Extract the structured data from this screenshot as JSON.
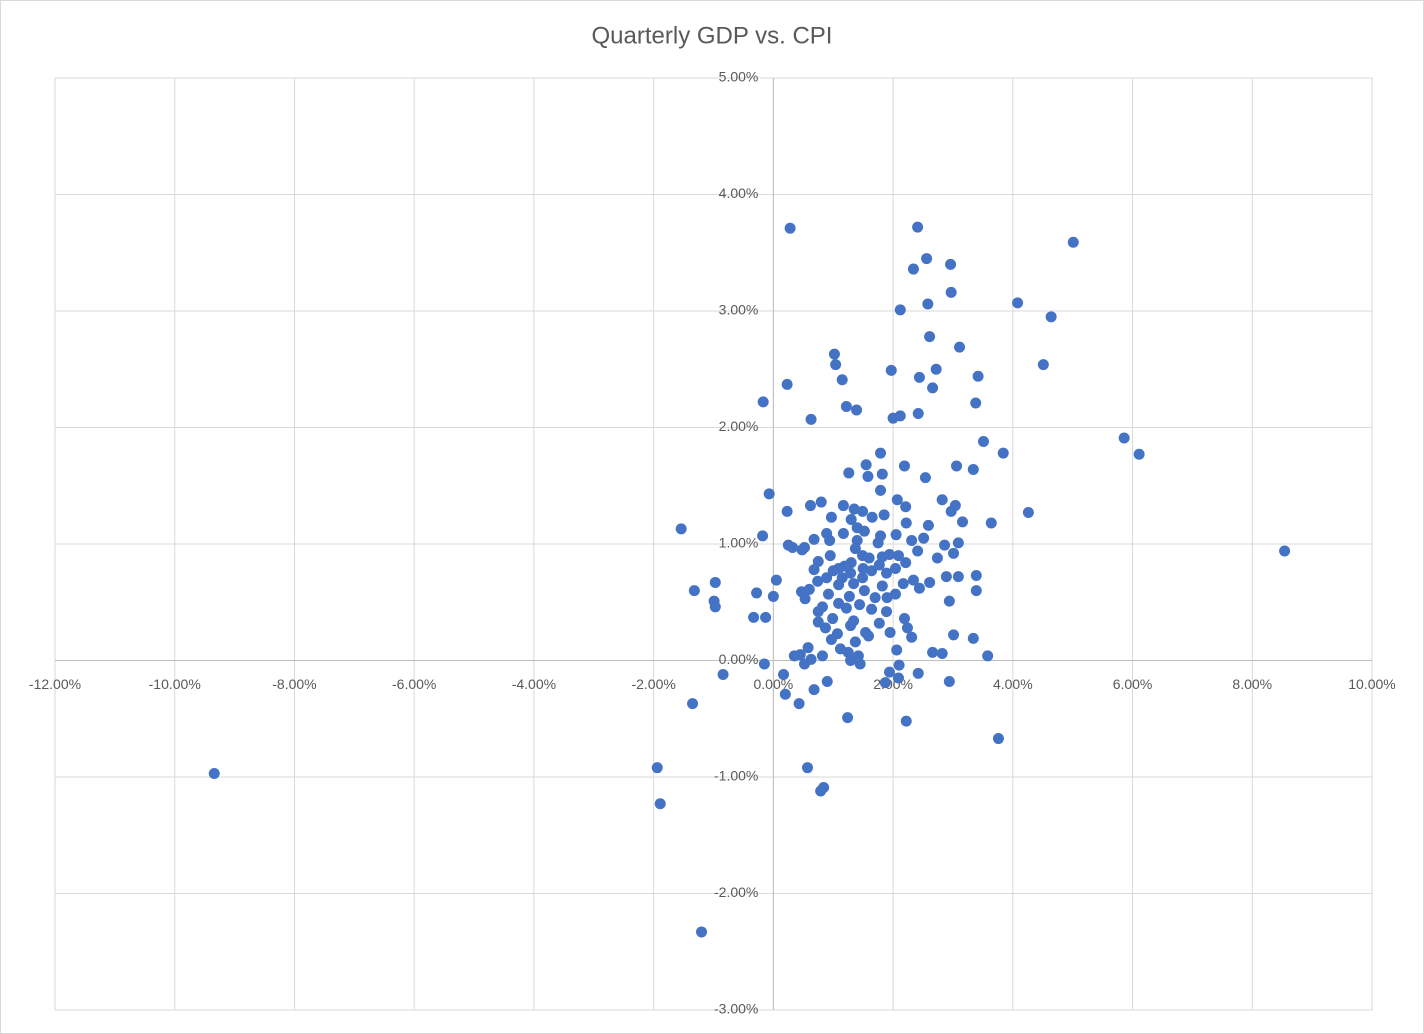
{
  "chart_data": {
    "type": "scatter",
    "title": "Quarterly GDP vs. CPI",
    "color": "#4472c4",
    "grid": true,
    "xlim": [
      -12,
      10
    ],
    "ylim": [
      -3,
      5
    ],
    "xticks": [
      {
        "value": -12,
        "label": "-12.00%"
      },
      {
        "value": -10,
        "label": "-10.00%"
      },
      {
        "value": -8,
        "label": "-8.00%"
      },
      {
        "value": -6,
        "label": "-6.00%"
      },
      {
        "value": -4,
        "label": "-4.00%"
      },
      {
        "value": -2,
        "label": "-2.00%"
      },
      {
        "value": 0,
        "label": "0.00%"
      },
      {
        "value": 2,
        "label": "2.00%"
      },
      {
        "value": 4,
        "label": "4.00%"
      },
      {
        "value": 6,
        "label": "6.00%"
      },
      {
        "value": 8,
        "label": "8.00%"
      },
      {
        "value": 10,
        "label": "10.00%"
      }
    ],
    "yticks": [
      {
        "value": -3,
        "label": "-3.00%"
      },
      {
        "value": -2,
        "label": "-2.00%"
      },
      {
        "value": -1,
        "label": "-1.00%"
      },
      {
        "value": 0,
        "label": "0.00%"
      },
      {
        "value": 1,
        "label": "1.00%"
      },
      {
        "value": 2,
        "label": "2.00%"
      },
      {
        "value": 3,
        "label": "3.00%"
      },
      {
        "value": 4,
        "label": "4.00%"
      },
      {
        "value": 5,
        "label": "5.00%"
      }
    ],
    "x": [
      -9.34,
      8.54,
      6.11,
      5.86,
      5.01,
      4.64,
      4.51,
      4.08,
      4.26,
      0.28,
      2.41,
      2.56,
      2.96,
      2.34,
      2.97,
      2.58,
      2.12,
      2.61,
      3.11,
      1.02,
      1.04,
      1.97,
      2.72,
      2.44,
      3.42,
      1.15,
      0.23,
      2.66,
      3.38,
      -0.17,
      1.22,
      1.39,
      2.42,
      2.12,
      2.0,
      0.63,
      3.51,
      3.84,
      1.79,
      2.19,
      3.06,
      3.34,
      1.55,
      1.26,
      1.82,
      1.58,
      2.54,
      1.79,
      -0.07,
      2.82,
      2.07,
      0.8,
      0.62,
      1.17,
      3.04,
      2.21,
      1.35,
      1.49,
      0.23,
      2.97,
      0.97,
      1.65,
      1.85,
      1.3,
      2.22,
      3.16,
      3.64,
      2.59,
      -1.54,
      1.4,
      1.52,
      0.89,
      1.17,
      1.79,
      -0.18,
      0.68,
      2.05,
      2.51,
      2.31,
      3.09,
      0.94,
      1.4,
      2.86,
      1.75,
      0.25,
      0.32,
      0.52,
      1.37,
      0.48,
      2.41,
      3.01,
      0.95,
      1.49,
      1.94,
      2.09,
      2.74,
      1.82,
      1.6,
      0.75,
      1.3,
      2.21,
      1.19,
      1.77,
      1.09,
      1.5,
      0.68,
      2.04,
      1.0,
      1.64,
      1.89,
      1.29,
      3.39,
      3.09,
      2.89,
      -0.97,
      0.05,
      0.89,
      1.15,
      1.49,
      0.74,
      2.34,
      2.61,
      2.17,
      1.34,
      1.09,
      1.82,
      0.6,
      2.44,
      1.52,
      3.39,
      -1.32,
      -0.28,
      0.47,
      0.0,
      0.92,
      1.27,
      2.04,
      1.9,
      0.53,
      1.7,
      -0.99,
      2.94,
      -0.97,
      0.82,
      1.44,
      1.22,
      1.64,
      1.89,
      1.09,
      0.75,
      -0.33,
      -0.13,
      2.19,
      0.99,
      1.34,
      0.75,
      1.77,
      2.24,
      0.87,
      1.29,
      1.54,
      1.95,
      1.07,
      1.59,
      2.31,
      3.34,
      3.01,
      1.37,
      0.97,
      0.58,
      1.12,
      2.06,
      1.25,
      2.66,
      2.82,
      0.35,
      0.45,
      0.82,
      3.58,
      1.42,
      0.63,
      1.29,
      0.52,
      1.45,
      2.1,
      -0.15,
      1.94,
      2.42,
      -0.84,
      0.17,
      2.09,
      2.94,
      0.9,
      1.87,
      0.68,
      0.2,
      -1.35,
      0.43,
      1.24,
      2.22,
      3.76,
      -1.94,
      0.57,
      0.84,
      0.79,
      -1.89,
      -1.2
    ],
    "values": [
      -0.97,
      0.94,
      1.77,
      1.91,
      3.59,
      2.95,
      2.54,
      3.07,
      1.27,
      3.71,
      3.72,
      3.45,
      3.4,
      3.36,
      3.16,
      3.06,
      3.01,
      2.78,
      2.69,
      2.63,
      2.54,
      2.49,
      2.5,
      2.43,
      2.44,
      2.41,
      2.37,
      2.34,
      2.21,
      2.22,
      2.18,
      2.15,
      2.12,
      2.1,
      2.08,
      2.07,
      1.88,
      1.78,
      1.78,
      1.67,
      1.67,
      1.64,
      1.68,
      1.61,
      1.6,
      1.58,
      1.57,
      1.46,
      1.43,
      1.38,
      1.38,
      1.36,
      1.33,
      1.33,
      1.33,
      1.32,
      1.3,
      1.28,
      1.28,
      1.28,
      1.23,
      1.23,
      1.25,
      1.21,
      1.18,
      1.19,
      1.18,
      1.16,
      1.13,
      1.14,
      1.11,
      1.09,
      1.09,
      1.07,
      1.07,
      1.04,
      1.08,
      1.05,
      1.03,
      1.01,
      1.03,
      1.03,
      0.99,
      1.01,
      0.99,
      0.97,
      0.97,
      0.96,
      0.95,
      0.94,
      0.92,
      0.9,
      0.9,
      0.91,
      0.9,
      0.88,
      0.89,
      0.88,
      0.85,
      0.84,
      0.84,
      0.81,
      0.82,
      0.79,
      0.79,
      0.78,
      0.79,
      0.77,
      0.77,
      0.75,
      0.75,
      0.73,
      0.72,
      0.72,
      0.67,
      0.69,
      0.71,
      0.71,
      0.71,
      0.68,
      0.69,
      0.67,
      0.66,
      0.66,
      0.65,
      0.64,
      0.61,
      0.62,
      0.6,
      0.6,
      0.6,
      0.58,
      0.59,
      0.55,
      0.57,
      0.55,
      0.57,
      0.54,
      0.53,
      0.54,
      0.51,
      0.51,
      0.46,
      0.46,
      0.48,
      0.45,
      0.44,
      0.42,
      0.49,
      0.42,
      0.37,
      0.37,
      0.36,
      0.36,
      0.34,
      0.33,
      0.32,
      0.28,
      0.28,
      0.3,
      0.24,
      0.24,
      0.23,
      0.21,
      0.2,
      0.19,
      0.22,
      0.16,
      0.18,
      0.11,
      0.1,
      0.09,
      0.07,
      0.07,
      0.06,
      0.04,
      0.05,
      0.04,
      0.04,
      0.04,
      0.01,
      0.0,
      -0.03,
      -0.03,
      -0.04,
      -0.03,
      -0.1,
      -0.11,
      -0.12,
      -0.12,
      -0.15,
      -0.18,
      -0.18,
      -0.19,
      -0.25,
      -0.29,
      -0.37,
      -0.37,
      -0.49,
      -0.52,
      -0.67,
      -0.92,
      -0.92,
      -1.09,
      -1.12,
      -1.23,
      -2.33
    ]
  }
}
